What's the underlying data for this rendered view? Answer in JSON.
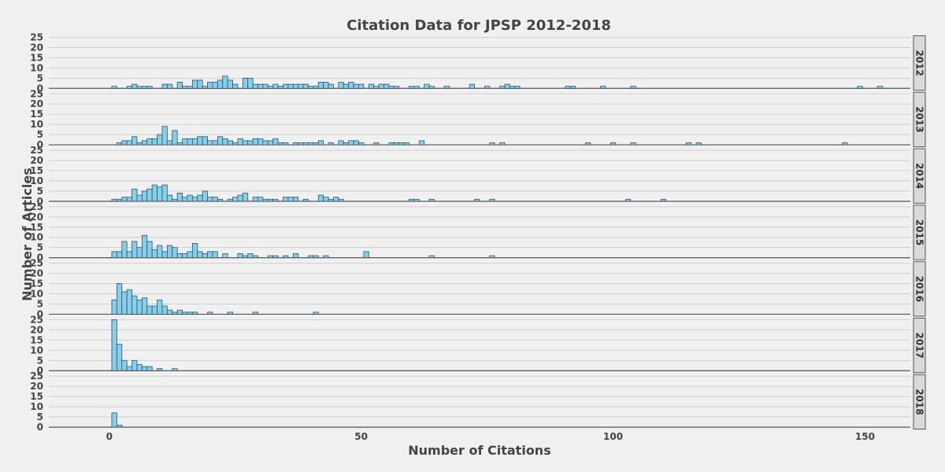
{
  "chart_data": {
    "type": "bar",
    "title": "Citation Data for JPSP 2012-2018",
    "xlabel": "Number of Citations",
    "ylabel": "Number of Articles",
    "xlim": [
      -12,
      159
    ],
    "ylim": [
      0,
      25
    ],
    "x_ticks": [
      0,
      50,
      100,
      150
    ],
    "y_ticks": [
      0,
      5,
      10,
      15,
      20,
      25
    ],
    "bin_width": 1,
    "grid": true,
    "bar_color": "#87ceeb",
    "bar_edge_color": "#2f5566",
    "panels": [
      {
        "label": "2012",
        "bins": [
          [
            1,
            1
          ],
          [
            4,
            1
          ],
          [
            5,
            2
          ],
          [
            6,
            1
          ],
          [
            7,
            1
          ],
          [
            8,
            1
          ],
          [
            11,
            2
          ],
          [
            12,
            2
          ],
          [
            14,
            3
          ],
          [
            15,
            1
          ],
          [
            16,
            1
          ],
          [
            17,
            4
          ],
          [
            18,
            4
          ],
          [
            19,
            1
          ],
          [
            20,
            3
          ],
          [
            21,
            3
          ],
          [
            22,
            4
          ],
          [
            23,
            6
          ],
          [
            24,
            4
          ],
          [
            25,
            2
          ],
          [
            27,
            5
          ],
          [
            28,
            5
          ],
          [
            29,
            2
          ],
          [
            30,
            2
          ],
          [
            31,
            2
          ],
          [
            32,
            1
          ],
          [
            33,
            2
          ],
          [
            34,
            1
          ],
          [
            35,
            2
          ],
          [
            36,
            2
          ],
          [
            37,
            2
          ],
          [
            38,
            2
          ],
          [
            39,
            2
          ],
          [
            40,
            1
          ],
          [
            41,
            1
          ],
          [
            42,
            3
          ],
          [
            43,
            3
          ],
          [
            44,
            2
          ],
          [
            46,
            3
          ],
          [
            47,
            2
          ],
          [
            48,
            3
          ],
          [
            49,
            2
          ],
          [
            50,
            2
          ],
          [
            52,
            2
          ],
          [
            53,
            1
          ],
          [
            54,
            2
          ],
          [
            55,
            2
          ],
          [
            56,
            1
          ],
          [
            57,
            1
          ],
          [
            60,
            1
          ],
          [
            61,
            1
          ],
          [
            63,
            2
          ],
          [
            64,
            1
          ],
          [
            67,
            1
          ],
          [
            72,
            2
          ],
          [
            75,
            1
          ],
          [
            78,
            1
          ],
          [
            79,
            2
          ],
          [
            80,
            1
          ],
          [
            81,
            1
          ],
          [
            91,
            1
          ],
          [
            92,
            1
          ],
          [
            98,
            1
          ],
          [
            104,
            1
          ],
          [
            149,
            1
          ],
          [
            153,
            1
          ]
        ]
      },
      {
        "label": "2013",
        "bins": [
          [
            2,
            1
          ],
          [
            3,
            2
          ],
          [
            4,
            2
          ],
          [
            5,
            4
          ],
          [
            6,
            1
          ],
          [
            7,
            2
          ],
          [
            8,
            3
          ],
          [
            9,
            3
          ],
          [
            10,
            5
          ],
          [
            11,
            9
          ],
          [
            12,
            2
          ],
          [
            13,
            7
          ],
          [
            14,
            1
          ],
          [
            15,
            3
          ],
          [
            16,
            3
          ],
          [
            17,
            3
          ],
          [
            18,
            4
          ],
          [
            19,
            4
          ],
          [
            20,
            2
          ],
          [
            21,
            2
          ],
          [
            22,
            4
          ],
          [
            23,
            3
          ],
          [
            24,
            2
          ],
          [
            25,
            1
          ],
          [
            26,
            3
          ],
          [
            27,
            2
          ],
          [
            28,
            2
          ],
          [
            29,
            3
          ],
          [
            30,
            3
          ],
          [
            31,
            2
          ],
          [
            32,
            2
          ],
          [
            33,
            3
          ],
          [
            34,
            1
          ],
          [
            35,
            1
          ],
          [
            37,
            1
          ],
          [
            38,
            1
          ],
          [
            39,
            1
          ],
          [
            40,
            1
          ],
          [
            41,
            1
          ],
          [
            42,
            2
          ],
          [
            44,
            1
          ],
          [
            46,
            2
          ],
          [
            47,
            1
          ],
          [
            48,
            2
          ],
          [
            49,
            2
          ],
          [
            50,
            1
          ],
          [
            53,
            1
          ],
          [
            56,
            1
          ],
          [
            57,
            1
          ],
          [
            58,
            1
          ],
          [
            59,
            1
          ],
          [
            62,
            2
          ],
          [
            76,
            1
          ],
          [
            78,
            1
          ],
          [
            95,
            1
          ],
          [
            100,
            1
          ],
          [
            104,
            1
          ],
          [
            115,
            1
          ],
          [
            117,
            1
          ],
          [
            146,
            1
          ]
        ]
      },
      {
        "label": "2014",
        "bins": [
          [
            1,
            1
          ],
          [
            2,
            1
          ],
          [
            3,
            2
          ],
          [
            4,
            2
          ],
          [
            5,
            6
          ],
          [
            6,
            3
          ],
          [
            7,
            5
          ],
          [
            8,
            6
          ],
          [
            9,
            8
          ],
          [
            10,
            7
          ],
          [
            11,
            8
          ],
          [
            12,
            3
          ],
          [
            13,
            1
          ],
          [
            14,
            4
          ],
          [
            15,
            2
          ],
          [
            16,
            3
          ],
          [
            17,
            2
          ],
          [
            18,
            3
          ],
          [
            19,
            5
          ],
          [
            20,
            2
          ],
          [
            21,
            2
          ],
          [
            22,
            1
          ],
          [
            24,
            1
          ],
          [
            25,
            2
          ],
          [
            26,
            3
          ],
          [
            27,
            4
          ],
          [
            29,
            2
          ],
          [
            30,
            2
          ],
          [
            31,
            1
          ],
          [
            32,
            1
          ],
          [
            33,
            1
          ],
          [
            35,
            2
          ],
          [
            36,
            2
          ],
          [
            37,
            2
          ],
          [
            39,
            1
          ],
          [
            42,
            3
          ],
          [
            43,
            2
          ],
          [
            44,
            1
          ],
          [
            45,
            2
          ],
          [
            46,
            1
          ],
          [
            60,
            1
          ],
          [
            61,
            1
          ],
          [
            64,
            1
          ],
          [
            73,
            1
          ],
          [
            76,
            1
          ],
          [
            103,
            1
          ],
          [
            110,
            1
          ]
        ]
      },
      {
        "label": "2015",
        "bins": [
          [
            1,
            3
          ],
          [
            2,
            3
          ],
          [
            3,
            8
          ],
          [
            4,
            3
          ],
          [
            5,
            8
          ],
          [
            6,
            5
          ],
          [
            7,
            11
          ],
          [
            8,
            8
          ],
          [
            9,
            4
          ],
          [
            10,
            6
          ],
          [
            11,
            3
          ],
          [
            12,
            6
          ],
          [
            13,
            5
          ],
          [
            14,
            2
          ],
          [
            15,
            2
          ],
          [
            16,
            3
          ],
          [
            17,
            7
          ],
          [
            18,
            3
          ],
          [
            19,
            2
          ],
          [
            20,
            3
          ],
          [
            21,
            3
          ],
          [
            23,
            2
          ],
          [
            26,
            2
          ],
          [
            27,
            1
          ],
          [
            28,
            2
          ],
          [
            29,
            1
          ],
          [
            32,
            1
          ],
          [
            33,
            1
          ],
          [
            35,
            1
          ],
          [
            37,
            2
          ],
          [
            40,
            1
          ],
          [
            41,
            1
          ],
          [
            43,
            1
          ],
          [
            51,
            3
          ],
          [
            64,
            1
          ],
          [
            76,
            1
          ]
        ]
      },
      {
        "label": "2016",
        "bins": [
          [
            1,
            7
          ],
          [
            2,
            15
          ],
          [
            3,
            11
          ],
          [
            4,
            12
          ],
          [
            5,
            9
          ],
          [
            6,
            7
          ],
          [
            7,
            8
          ],
          [
            8,
            4
          ],
          [
            9,
            4
          ],
          [
            10,
            7
          ],
          [
            11,
            4
          ],
          [
            12,
            2
          ],
          [
            13,
            1
          ],
          [
            14,
            2
          ],
          [
            15,
            1
          ],
          [
            16,
            1
          ],
          [
            17,
            1
          ],
          [
            20,
            1
          ],
          [
            24,
            1
          ],
          [
            29,
            1
          ],
          [
            41,
            1
          ]
        ]
      },
      {
        "label": "2017",
        "bins": [
          [
            1,
            25
          ],
          [
            2,
            13
          ],
          [
            3,
            5
          ],
          [
            4,
            2
          ],
          [
            5,
            5
          ],
          [
            6,
            3
          ],
          [
            7,
            2
          ],
          [
            8,
            2
          ],
          [
            10,
            1
          ],
          [
            13,
            1
          ]
        ]
      },
      {
        "label": "2018",
        "bins": [
          [
            1,
            7
          ],
          [
            2,
            1
          ]
        ]
      }
    ]
  }
}
